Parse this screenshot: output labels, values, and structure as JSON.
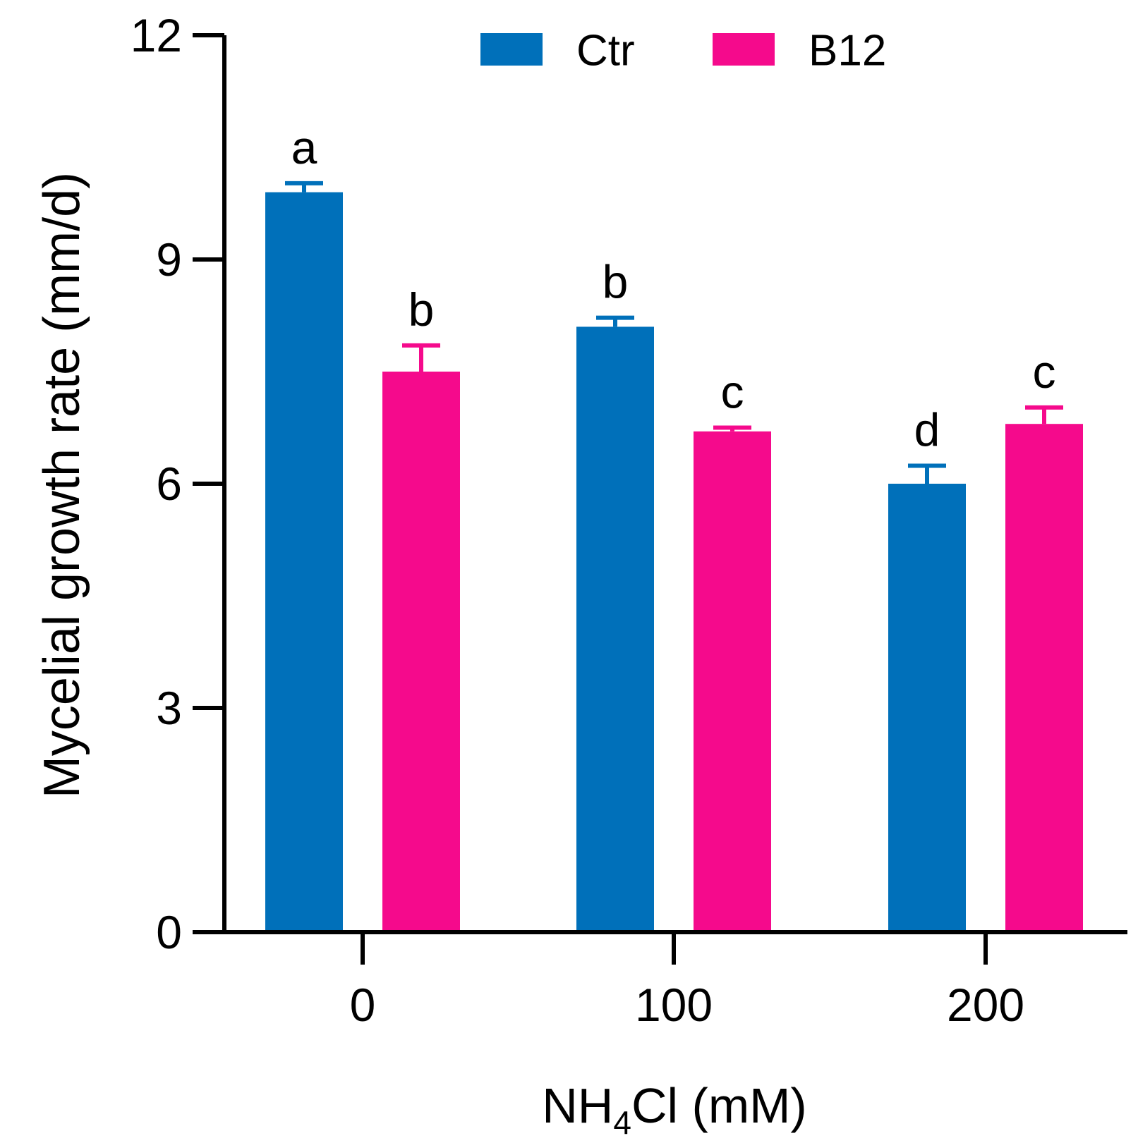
{
  "chart_data": {
    "type": "bar",
    "title": "",
    "xlabel": {
      "prefix": "NH",
      "subscript": "4",
      "suffix": "Cl (mM)"
    },
    "ylabel": "Mycelial growth rate (mm/d)",
    "categories": [
      "0",
      "100",
      "200"
    ],
    "ylim": [
      0,
      12
    ],
    "yticks": [
      "0",
      "3",
      "6",
      "9",
      "12"
    ],
    "legend_position": "top-right",
    "series": [
      {
        "name": "Ctr",
        "color": "#0070BA",
        "values": [
          9.9,
          8.1,
          6.0
        ],
        "errors": [
          0.12,
          0.12,
          0.24
        ],
        "letters": [
          "a",
          "b",
          "d"
        ]
      },
      {
        "name": "B12",
        "color": "#F50A8C",
        "values": [
          7.5,
          6.7,
          6.8
        ],
        "errors": [
          0.35,
          0.05,
          0.22
        ],
        "letters": [
          "b",
          "c",
          "c"
        ]
      }
    ]
  }
}
